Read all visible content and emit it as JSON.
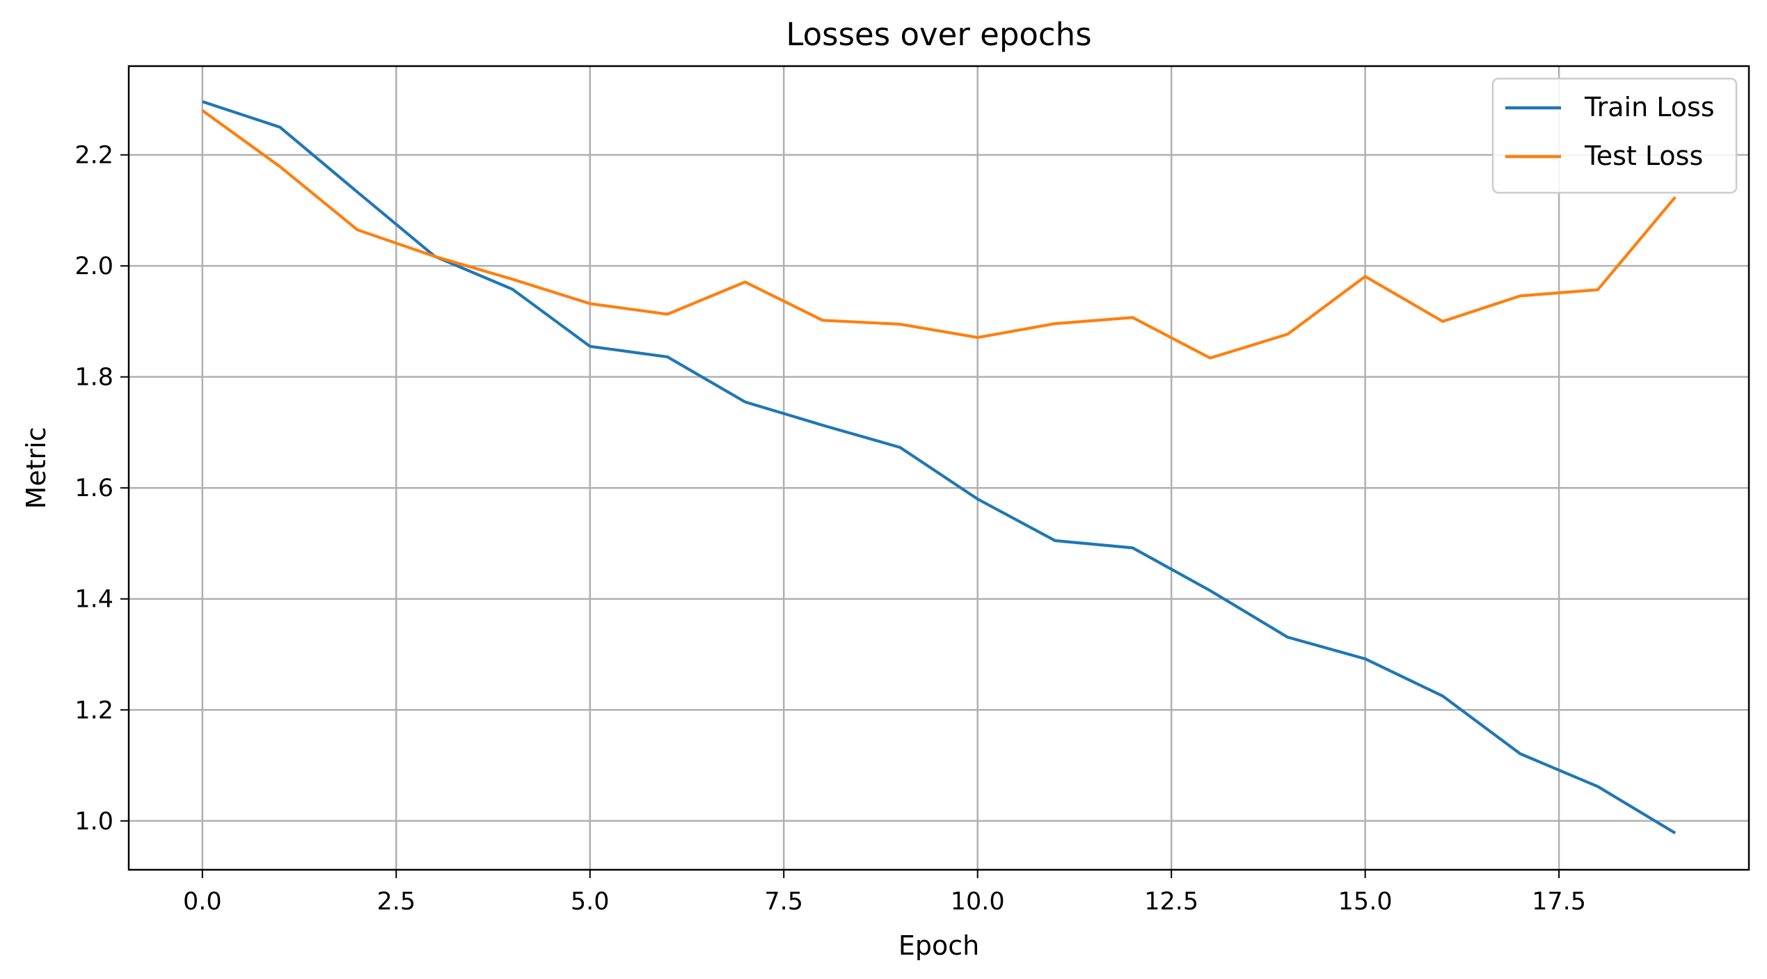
{
  "chart_data": {
    "type": "line",
    "title": "Losses over epochs",
    "xlabel": "Epoch",
    "ylabel": "Metric",
    "xlim": [
      -0.95,
      19.95
    ],
    "ylim": [
      0.912,
      2.36
    ],
    "xticks": [
      0.0,
      2.5,
      5.0,
      7.5,
      10.0,
      12.5,
      15.0,
      17.5
    ],
    "xtick_labels": [
      "0.0",
      "2.5",
      "5.0",
      "7.5",
      "10.0",
      "12.5",
      "15.0",
      "17.5"
    ],
    "yticks": [
      1.0,
      1.2,
      1.4,
      1.6,
      1.8,
      2.0,
      2.2
    ],
    "ytick_labels": [
      "1.0",
      "1.2",
      "1.4",
      "1.6",
      "1.8",
      "2.0",
      "2.2"
    ],
    "grid": true,
    "legend_position": "top-right",
    "x": [
      0,
      1,
      2,
      3,
      4,
      5,
      6,
      7,
      8,
      9,
      10,
      11,
      12,
      13,
      14,
      15,
      16,
      17,
      18,
      19
    ],
    "series": [
      {
        "name": "Train Loss",
        "color": "#1f77b4",
        "values": [
          2.296,
          2.25,
          2.133,
          2.017,
          1.958,
          1.855,
          1.836,
          1.755,
          1.713,
          1.673,
          1.58,
          1.505,
          1.492,
          1.415,
          1.331,
          1.292,
          1.225,
          1.121,
          1.062,
          0.978
        ]
      },
      {
        "name": "Test Loss",
        "color": "#ff7f0e",
        "values": [
          2.28,
          2.179,
          2.065,
          2.017,
          1.976,
          1.932,
          1.913,
          1.971,
          1.902,
          1.895,
          1.871,
          1.896,
          1.907,
          1.834,
          1.877,
          1.981,
          1.9,
          1.946,
          1.957,
          2.124
        ]
      }
    ]
  }
}
